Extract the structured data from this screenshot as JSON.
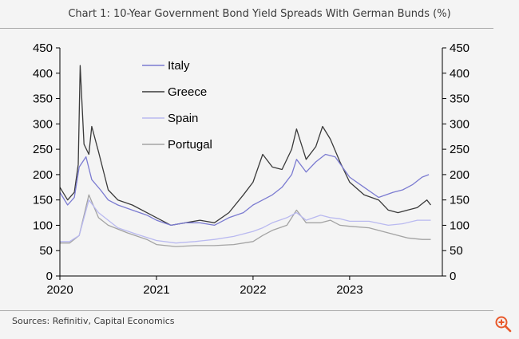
{
  "header": {
    "title": "Chart 1: 10-Year Government Bond Yield Spreads With German Bunds (%)"
  },
  "footer": {
    "source": "Sources: Refinitiv, Capital Economics"
  },
  "colors": {
    "Italy": "#7b7bd1",
    "Greece": "#3a3a3a",
    "Spain": "#b9b9f0",
    "Portugal": "#a3a3a3",
    "axis": "#000000",
    "zoom": "#e8582a"
  },
  "chart_data": {
    "type": "line",
    "title": "Chart 1: 10-Year Government Bond Yield Spreads With German Bunds (%)",
    "xlabel": "",
    "ylabel": "",
    "xlim": [
      2020.0,
      2023.96
    ],
    "ylim": [
      0,
      450
    ],
    "y_ticks": [
      0,
      50,
      100,
      150,
      200,
      250,
      300,
      350,
      400,
      450
    ],
    "x_tick_labels": [
      "2020",
      "2021",
      "2022",
      "2023"
    ],
    "x_tick_values": [
      2020,
      2021,
      2022,
      2023
    ],
    "grid": false,
    "legend_position": "top-left",
    "series": [
      {
        "name": "Italy",
        "x": [
          2020.0,
          2020.08,
          2020.15,
          2020.2,
          2020.27,
          2020.33,
          2020.42,
          2020.5,
          2020.6,
          2020.75,
          2020.9,
          2021.0,
          2021.15,
          2021.3,
          2021.45,
          2021.6,
          2021.75,
          2021.9,
          2022.0,
          2022.1,
          2022.2,
          2022.3,
          2022.4,
          2022.45,
          2022.55,
          2022.65,
          2022.75,
          2022.85,
          2023.0,
          2023.15,
          2023.3,
          2023.45,
          2023.55,
          2023.65,
          2023.75,
          2023.82
        ],
        "values": [
          165,
          140,
          155,
          215,
          235,
          190,
          170,
          150,
          140,
          130,
          120,
          110,
          100,
          105,
          105,
          100,
          115,
          125,
          140,
          150,
          160,
          175,
          200,
          230,
          205,
          225,
          240,
          235,
          195,
          175,
          155,
          165,
          170,
          180,
          195,
          200
        ]
      },
      {
        "name": "Greece",
        "x": [
          2020.0,
          2020.08,
          2020.15,
          2020.19,
          2020.21,
          2020.25,
          2020.3,
          2020.33,
          2020.4,
          2020.5,
          2020.6,
          2020.75,
          2020.9,
          2021.0,
          2021.15,
          2021.3,
          2021.45,
          2021.6,
          2021.75,
          2021.9,
          2022.0,
          2022.1,
          2022.2,
          2022.3,
          2022.4,
          2022.45,
          2022.55,
          2022.65,
          2022.72,
          2022.8,
          2022.9,
          2023.0,
          2023.15,
          2023.3,
          2023.4,
          2023.5,
          2023.6,
          2023.7,
          2023.8,
          2023.84
        ],
        "values": [
          175,
          150,
          165,
          220,
          415,
          260,
          240,
          295,
          245,
          170,
          150,
          140,
          125,
          115,
          100,
          105,
          110,
          105,
          125,
          160,
          185,
          240,
          215,
          210,
          250,
          290,
          230,
          255,
          295,
          270,
          225,
          185,
          160,
          150,
          130,
          125,
          130,
          135,
          150,
          140
        ]
      },
      {
        "name": "Spain",
        "x": [
          2020.0,
          2020.1,
          2020.2,
          2020.3,
          2020.4,
          2020.5,
          2020.6,
          2020.8,
          2021.0,
          2021.2,
          2021.4,
          2021.6,
          2021.8,
          2022.0,
          2022.1,
          2022.2,
          2022.35,
          2022.45,
          2022.55,
          2022.7,
          2022.8,
          2022.9,
          2023.0,
          2023.2,
          2023.4,
          2023.55,
          2023.7,
          2023.84
        ],
        "values": [
          68,
          68,
          80,
          150,
          125,
          110,
          95,
          82,
          70,
          65,
          68,
          72,
          78,
          88,
          95,
          105,
          115,
          125,
          110,
          120,
          115,
          113,
          108,
          108,
          100,
          103,
          110,
          110
        ]
      },
      {
        "name": "Portugal",
        "x": [
          2020.0,
          2020.1,
          2020.2,
          2020.3,
          2020.4,
          2020.5,
          2020.7,
          2020.9,
          2021.0,
          2021.2,
          2021.4,
          2021.6,
          2021.8,
          2022.0,
          2022.1,
          2022.2,
          2022.35,
          2022.45,
          2022.55,
          2022.7,
          2022.8,
          2022.9,
          2023.0,
          2023.2,
          2023.4,
          2023.6,
          2023.75,
          2023.84
        ],
        "values": [
          65,
          65,
          80,
          160,
          115,
          100,
          85,
          72,
          62,
          58,
          60,
          60,
          62,
          68,
          80,
          90,
          100,
          130,
          105,
          105,
          110,
          100,
          98,
          95,
          85,
          75,
          72,
          72
        ]
      }
    ]
  }
}
